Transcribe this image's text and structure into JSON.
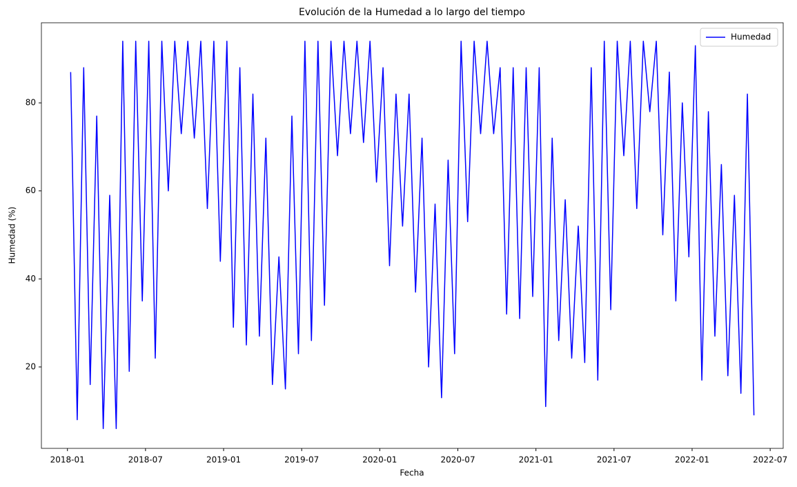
{
  "chart_data": {
    "type": "line",
    "title": "Evolución de la Humedad a lo largo del tiempo",
    "x_label": "Fecha",
    "y_label": "Humedad (%)",
    "x": [
      "2018-01",
      "2018-01",
      "2018-02",
      "2018-02",
      "2018-03",
      "2018-03",
      "2018-04",
      "2018-04",
      "2018-05",
      "2018-05",
      "2018-06",
      "2018-06",
      "2018-07",
      "2018-07",
      "2018-08",
      "2018-08",
      "2018-09",
      "2018-09",
      "2018-10",
      "2018-10",
      "2018-11",
      "2018-11",
      "2018-12",
      "2018-12",
      "2019-01",
      "2019-01",
      "2019-02",
      "2019-02",
      "2019-03",
      "2019-03",
      "2019-04",
      "2019-04",
      "2019-05",
      "2019-05",
      "2019-06",
      "2019-06",
      "2019-07",
      "2019-07",
      "2019-08",
      "2019-08",
      "2019-09",
      "2019-09",
      "2019-10",
      "2019-10",
      "2019-11",
      "2019-11",
      "2019-12",
      "2019-12",
      "2020-01",
      "2020-01",
      "2020-02",
      "2020-02",
      "2020-03",
      "2020-03",
      "2020-04",
      "2020-04",
      "2020-05",
      "2020-05",
      "2020-06",
      "2020-06",
      "2020-07",
      "2020-07",
      "2020-08",
      "2020-08",
      "2020-09",
      "2020-09",
      "2020-10",
      "2020-10",
      "2020-11",
      "2020-11",
      "2020-12",
      "2020-12",
      "2021-01",
      "2021-01",
      "2021-02",
      "2021-02",
      "2021-03",
      "2021-03",
      "2021-04",
      "2021-04",
      "2021-05",
      "2021-05",
      "2021-06",
      "2021-06",
      "2021-07",
      "2021-07",
      "2021-08",
      "2021-08",
      "2021-09",
      "2021-09",
      "2021-10",
      "2021-10",
      "2021-11",
      "2021-11",
      "2021-12",
      "2021-12",
      "2022-01",
      "2022-01",
      "2022-02",
      "2022-02",
      "2022-03",
      "2022-03",
      "2022-04",
      "2022-04",
      "2022-05",
      "2022-05"
    ],
    "series": [
      {
        "name": "Humedad",
        "color": "#0000ff",
        "values": [
          87,
          8,
          88,
          16,
          77,
          6,
          59,
          6,
          94,
          19,
          94,
          35,
          94,
          22,
          94,
          60,
          94,
          73,
          94,
          72,
          94,
          56,
          94,
          44,
          94,
          29,
          88,
          25,
          82,
          27,
          72,
          16,
          45,
          15,
          77,
          23,
          94,
          26,
          94,
          34,
          94,
          68,
          94,
          73,
          94,
          71,
          94,
          62,
          88,
          43,
          82,
          52,
          82,
          37,
          72,
          20,
          57,
          13,
          67,
          23,
          94,
          53,
          94,
          73,
          94,
          73,
          88,
          32,
          88,
          31,
          88,
          36,
          88,
          11,
          72,
          26,
          58,
          22,
          52,
          21,
          88,
          17,
          94,
          33,
          94,
          68,
          94,
          56,
          94,
          78,
          94,
          50,
          87,
          35,
          80,
          45,
          93,
          17,
          78,
          27,
          66,
          18,
          59,
          14,
          82,
          9
        ]
      }
    ],
    "xlim": [
      "2017-11",
      "2022-08"
    ],
    "xticks": [
      "2018-01",
      "2018-07",
      "2019-01",
      "2019-07",
      "2020-01",
      "2020-07",
      "2021-01",
      "2021-07",
      "2022-01",
      "2022-07"
    ],
    "ylim": [
      1.5,
      98.2
    ],
    "yticks": [
      20,
      40,
      60,
      80
    ],
    "legend": "upper right"
  }
}
